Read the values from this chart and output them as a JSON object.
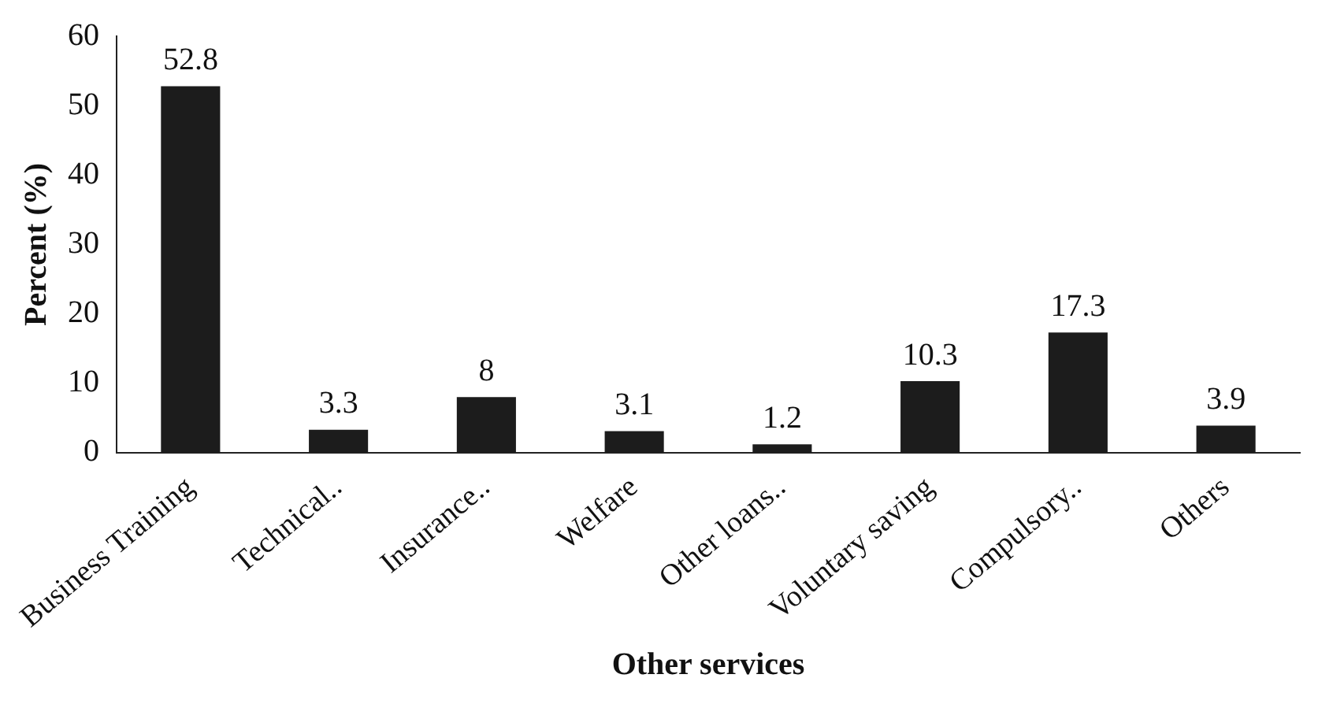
{
  "chart_data": {
    "type": "bar",
    "xlabel": "Other services",
    "ylabel": "Percent (%)",
    "categories": [
      "Business Training",
      "Technical..",
      "Insurance..",
      "Welfare",
      "Other loans..",
      "Voluntary saving",
      "Compulsory..",
      "Others"
    ],
    "values": [
      52.8,
      3.3,
      8,
      3.1,
      1.2,
      10.3,
      17.3,
      3.9
    ],
    "color": "#1c1c1c",
    "ylim": [
      0,
      60
    ],
    "yticks": [
      0,
      10,
      20,
      30,
      40,
      50,
      60
    ],
    "grid": false,
    "legend": false,
    "data_labels": true
  }
}
